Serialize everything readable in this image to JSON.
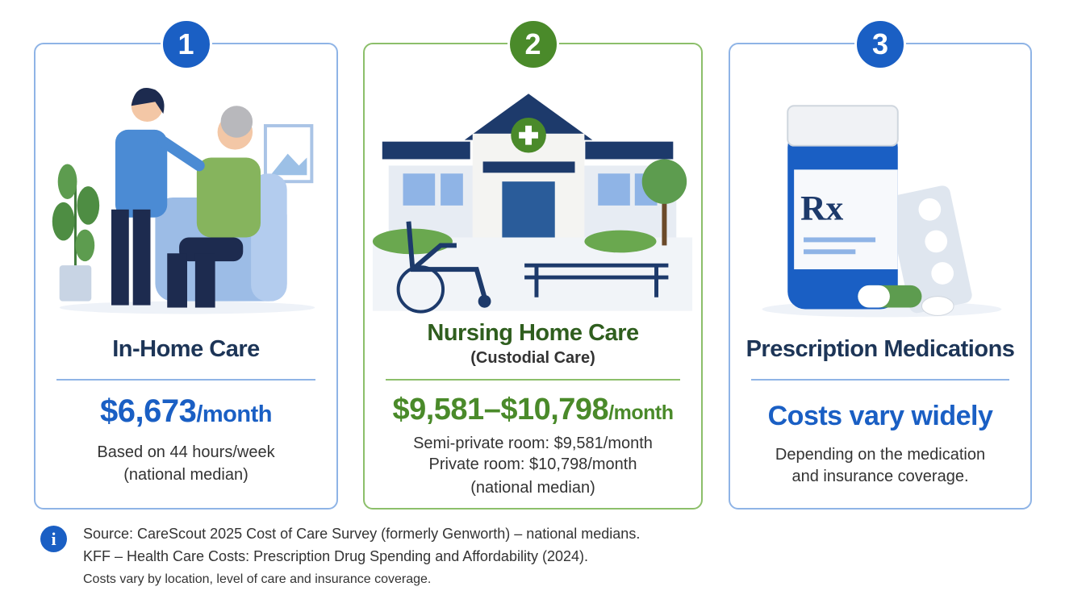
{
  "cards": [
    {
      "number": "1",
      "title": "In-Home Care",
      "price": "$6,673",
      "unit": "/month",
      "notes": [
        "Based on 44 hours/week",
        "(national median)"
      ]
    },
    {
      "number": "2",
      "title": "Nursing Home Care",
      "subtitle": "(Custodial Care)",
      "price": "$9,581–$10,798",
      "unit": "/month",
      "notes": [
        "Semi-private room: $9,581/month",
        "Private room: $10,798/month",
        "(national median)"
      ]
    },
    {
      "number": "3",
      "title": "Prescription Medications",
      "label": "Rx",
      "price": "Costs vary widely",
      "notes": [
        "Depending on the medication",
        "and insurance coverage."
      ]
    }
  ],
  "source": {
    "icon": "i",
    "lines": [
      "Source: CareScout 2025 Cost of Care Survey (formerly Genworth) – national medians.",
      "KFF – Health Care Costs: Prescription Drug Spending and Affordability (2024)."
    ],
    "note": "Costs vary by location, level of care and insurance coverage."
  }
}
